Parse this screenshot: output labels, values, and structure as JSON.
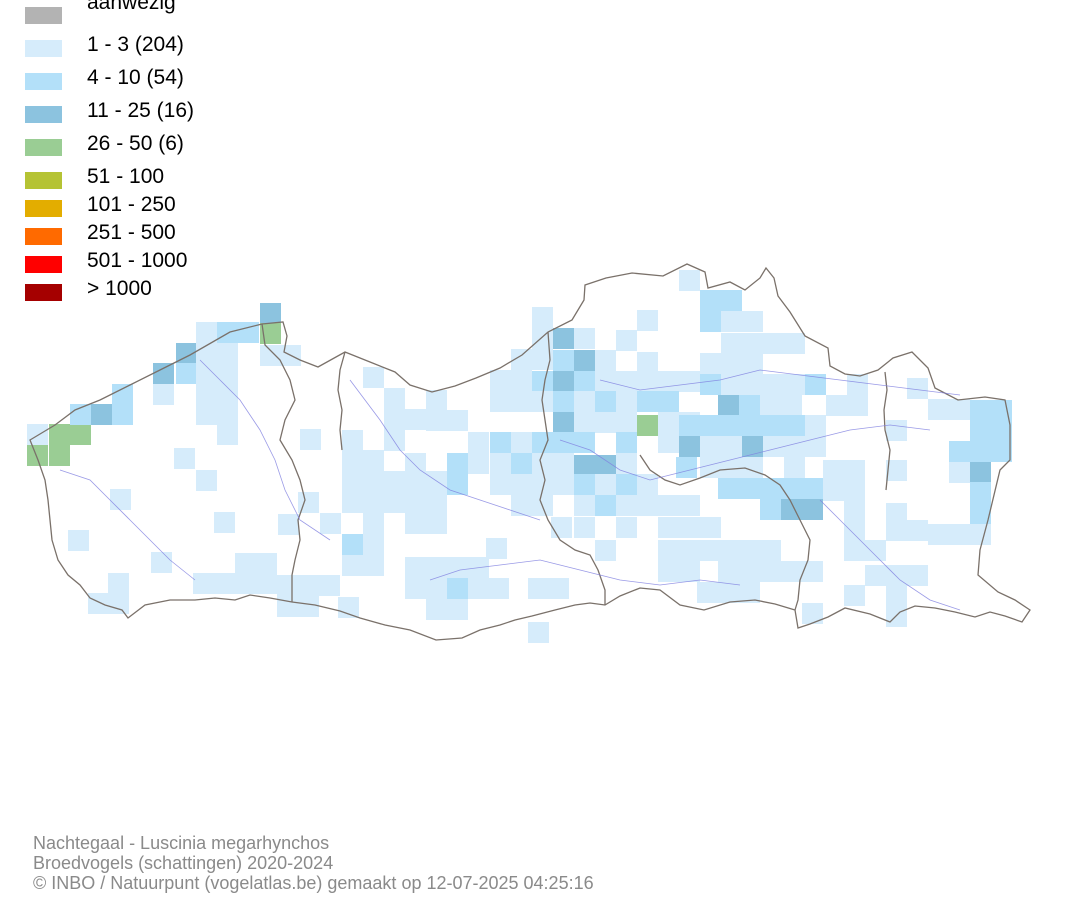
{
  "legend": {
    "items": [
      {
        "label": "aanwezig",
        "color": "#b3b3b3"
      },
      {
        "label": "1 - 3 (204)",
        "color": "#d6ecfb"
      },
      {
        "label": "4 - 10 (54)",
        "color": "#b3e0f9"
      },
      {
        "label": "11 - 25 (16)",
        "color": "#8cc3df"
      },
      {
        "label": "26 - 50 (6)",
        "color": "#9acd94"
      },
      {
        "label": "51 - 100",
        "color": "#b5c334"
      },
      {
        "label": "101 - 250",
        "color": "#e3ad00"
      },
      {
        "label": "251 - 500",
        "color": "#ff6a00"
      },
      {
        "label": "501 - 1000",
        "color": "#ff0000"
      },
      {
        "label": "> 1000",
        "color": "#a50000"
      }
    ]
  },
  "footer": {
    "species": "Nachtegaal - Luscinia megarhynchos",
    "dataset": "Broedvogels (schattingen) 2020-2024",
    "credit": "© INBO / Natuurpunt (vogelatlas.be) gemaakt op 12-07-2025 04:25:16"
  }
}
